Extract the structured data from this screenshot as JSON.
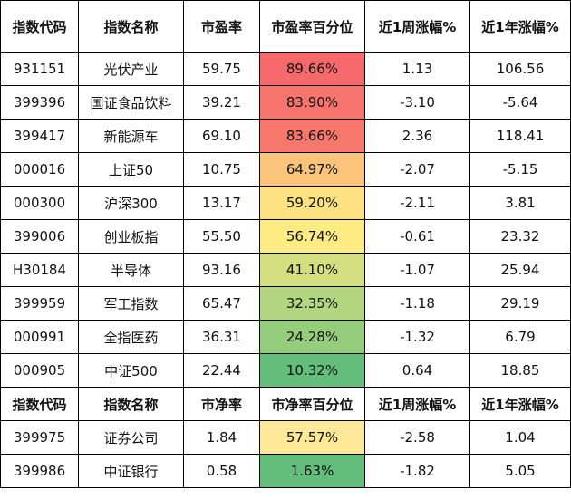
{
  "headers_pe": [
    "指数代码",
    "指数名称",
    "市盈率",
    "市盈率百分位",
    "近1周涨幅%",
    "近1年涨幅%"
  ],
  "rows_pe": [
    {
      "code": "931151",
      "name": "光伏产业",
      "ratio": "59.75",
      "pct": "89.66%",
      "pct_color": "#f8696b",
      "week": "1.13",
      "year": "106.56"
    },
    {
      "code": "399396",
      "name": "国证食品饮料",
      "ratio": "39.21",
      "pct": "83.90%",
      "pct_color": "#f8756d",
      "week": "-3.10",
      "year": "-5.64"
    },
    {
      "code": "399417",
      "name": "新能源车",
      "ratio": "69.10",
      "pct": "83.66%",
      "pct_color": "#f8776d",
      "week": "2.36",
      "year": "118.41"
    },
    {
      "code": "000016",
      "name": "上证50",
      "ratio": "10.75",
      "pct": "64.97%",
      "pct_color": "#fcc47b",
      "week": "-2.07",
      "year": "-5.15"
    },
    {
      "code": "000300",
      "name": "沪深300",
      "ratio": "13.17",
      "pct": "59.20%",
      "pct_color": "#fee282",
      "week": "-2.11",
      "year": "3.81"
    },
    {
      "code": "399006",
      "name": "创业板指",
      "ratio": "55.50",
      "pct": "56.74%",
      "pct_color": "#ffeb84",
      "week": "-0.61",
      "year": "23.32"
    },
    {
      "code": "H30184",
      "name": "半导体",
      "ratio": "93.16",
      "pct": "41.10%",
      "pct_color": "#d3df81",
      "week": "-1.07",
      "year": "25.94"
    },
    {
      "code": "399959",
      "name": "军工指数",
      "ratio": "65.47",
      "pct": "32.35%",
      "pct_color": "#b2d57f",
      "week": "-1.18",
      "year": "29.19"
    },
    {
      "code": "000991",
      "name": "全指医药",
      "ratio": "36.31",
      "pct": "24.28%",
      "pct_color": "#96cd7d",
      "week": "-1.32",
      "year": "6.79"
    },
    {
      "code": "000905",
      "name": "中证500",
      "ratio": "22.44",
      "pct": "10.32%",
      "pct_color": "#63be7b",
      "week": "0.64",
      "year": "18.85"
    }
  ],
  "headers_pb": [
    "指数代码",
    "指数名称",
    "市净率",
    "市净率百分位",
    "近1周涨幅%",
    "近1年涨幅%"
  ],
  "rows_pb": [
    {
      "code": "399975",
      "name": "证券公司",
      "ratio": "1.84",
      "pct": "57.57%",
      "pct_color": "#ffe999",
      "week": "-2.58",
      "year": "1.04"
    },
    {
      "code": "399986",
      "name": "中证银行",
      "ratio": "0.58",
      "pct": "1.63%",
      "pct_color": "#63be7b",
      "week": "-1.82",
      "year": "5.05"
    }
  ]
}
